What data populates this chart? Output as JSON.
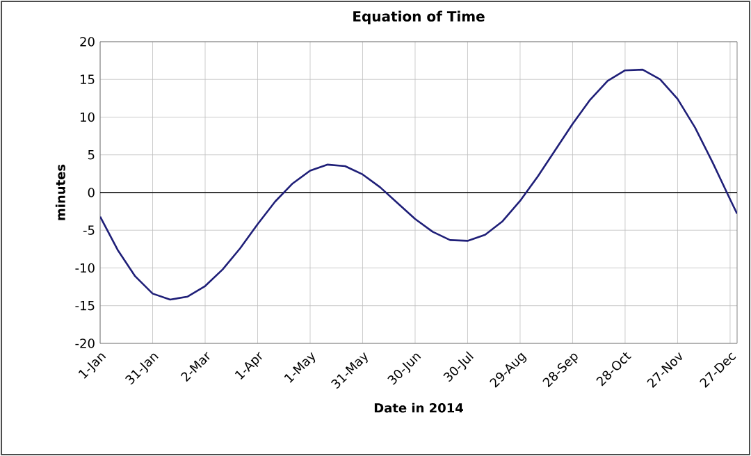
{
  "chart_data": {
    "type": "line",
    "title": "Equation of Time",
    "xlabel": "Date in 2014",
    "ylabel": "minutes",
    "x": [
      "2014-01-01",
      "2014-01-11",
      "2014-01-21",
      "2014-01-31",
      "2014-02-10",
      "2014-02-20",
      "2014-03-02",
      "2014-03-12",
      "2014-03-22",
      "2014-04-01",
      "2014-04-11",
      "2014-04-21",
      "2014-05-01",
      "2014-05-11",
      "2014-05-21",
      "2014-05-31",
      "2014-06-10",
      "2014-06-20",
      "2014-06-30",
      "2014-07-10",
      "2014-07-20",
      "2014-07-30",
      "2014-08-09",
      "2014-08-19",
      "2014-08-29",
      "2014-09-08",
      "2014-09-18",
      "2014-09-28",
      "2014-10-08",
      "2014-10-18",
      "2014-10-28",
      "2014-11-07",
      "2014-11-17",
      "2014-11-27",
      "2014-12-07",
      "2014-12-17",
      "2014-12-27",
      "2014-12-31"
    ],
    "series": [
      {
        "color": "#1f1f78",
        "values": [
          -3.2,
          -7.6,
          -11.1,
          -13.4,
          -14.2,
          -13.8,
          -12.4,
          -10.2,
          -7.4,
          -4.2,
          -1.2,
          1.2,
          2.9,
          3.7,
          3.5,
          2.4,
          0.7,
          -1.4,
          -3.5,
          -5.2,
          -6.3,
          -6.4,
          -5.6,
          -3.8,
          -1.1,
          2.1,
          5.6,
          9.1,
          12.3,
          14.8,
          16.2,
          16.3,
          15.0,
          12.4,
          8.6,
          4.0,
          -0.9,
          -2.8
        ]
      }
    ],
    "xlim": [
      "2014-01-01",
      "2014-12-31"
    ],
    "xticks": [
      {
        "value": "2014-01-01",
        "label": "1-Jan"
      },
      {
        "value": "2014-01-31",
        "label": "31-Jan"
      },
      {
        "value": "2014-03-02",
        "label": "2-Mar"
      },
      {
        "value": "2014-04-01",
        "label": "1-Apr"
      },
      {
        "value": "2014-05-01",
        "label": "1-May"
      },
      {
        "value": "2014-05-31",
        "label": "31-May"
      },
      {
        "value": "2014-06-30",
        "label": "30-Jun"
      },
      {
        "value": "2014-07-30",
        "label": "30-Jul"
      },
      {
        "value": "2014-08-29",
        "label": "29-Aug"
      },
      {
        "value": "2014-09-28",
        "label": "28-Sep"
      },
      {
        "value": "2014-10-28",
        "label": "28-Oct"
      },
      {
        "value": "2014-11-27",
        "label": "27-Nov"
      },
      {
        "value": "2014-12-27",
        "label": "27-Dec"
      }
    ],
    "ylim": [
      -20,
      20
    ],
    "yticks": [
      -20,
      -15,
      -10,
      -5,
      0,
      5,
      10,
      15,
      20
    ],
    "ref_lines": [
      {
        "axis": "y",
        "value": 0,
        "color": "#000000"
      }
    ],
    "grid": true,
    "marker": "none",
    "line_style": "solid"
  }
}
